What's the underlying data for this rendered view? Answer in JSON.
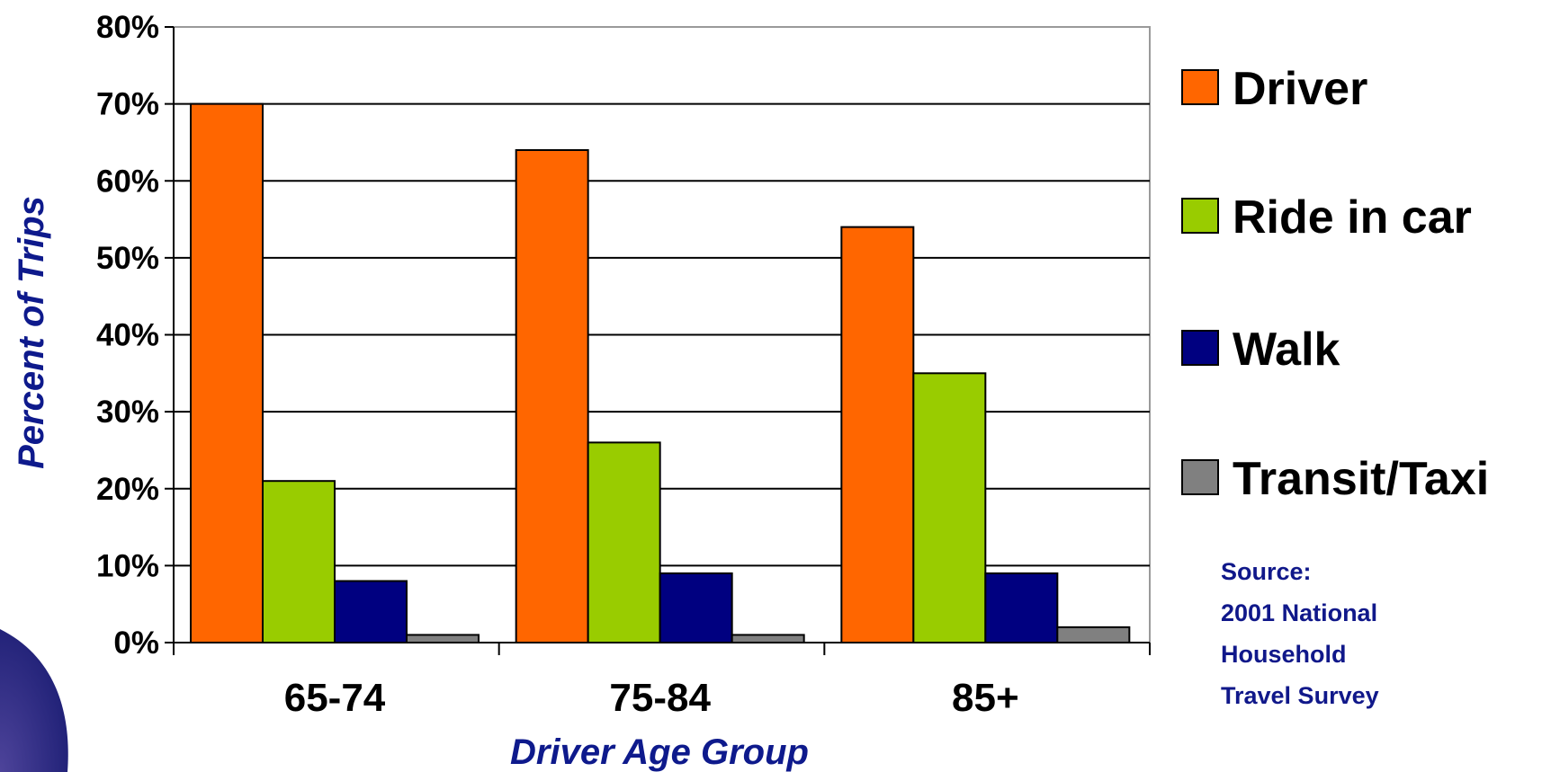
{
  "chart_data": {
    "type": "bar",
    "categories": [
      "65-74",
      "75-84",
      "85+"
    ],
    "series": [
      {
        "name": "Driver",
        "values": [
          70,
          64,
          54
        ],
        "color": "#ff6600"
      },
      {
        "name": "Ride in car",
        "values": [
          21,
          26,
          35
        ],
        "color": "#99cc00"
      },
      {
        "name": "Walk",
        "values": [
          8,
          9,
          9
        ],
        "color": "#000080"
      },
      {
        "name": "Transit/Taxi",
        "values": [
          1,
          1,
          2
        ],
        "color": "#808080"
      }
    ],
    "title": "",
    "xlabel": "Driver Age Group",
    "ylabel": "Percent of Trips",
    "ylim": [
      0,
      80
    ],
    "yticks": [
      0,
      10,
      20,
      30,
      40,
      50,
      60,
      70,
      80
    ],
    "ytick_labels": [
      "0%",
      "10%",
      "20%",
      "30%",
      "40%",
      "50%",
      "60%",
      "70%",
      "80%"
    ],
    "grid": true,
    "legend_position": "right"
  },
  "source_note": [
    "Source:",
    "2001 National",
    "Household",
    "Travel Survey"
  ]
}
